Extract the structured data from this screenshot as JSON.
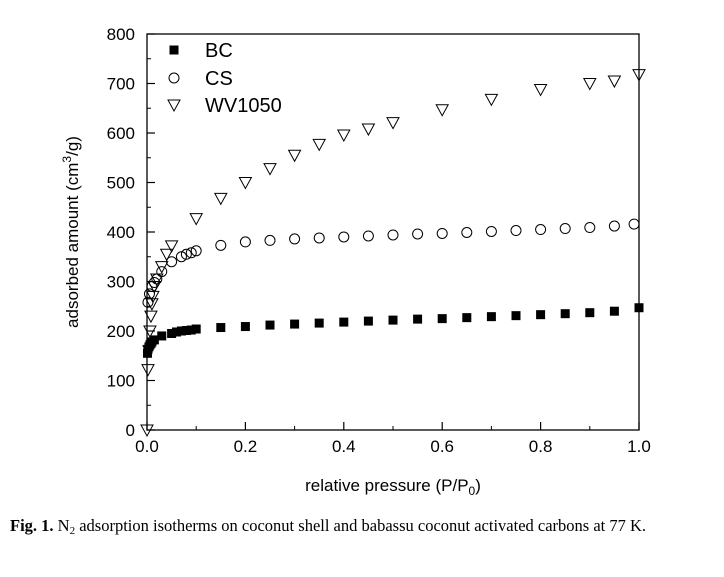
{
  "chart_data": {
    "type": "scatter",
    "xlabel_main": "relative pressure (P/P",
    "xlabel_sub": "0",
    "xlabel_end": ")",
    "ylabel_main": "adsorbed amount (cm",
    "ylabel_sup": "3",
    "ylabel_end": "/g)",
    "xlim": [
      0.0,
      1.0
    ],
    "ylim": [
      0,
      800
    ],
    "xticks": [
      0.0,
      0.2,
      0.4,
      0.6,
      0.8,
      1.0
    ],
    "xtick_labels": [
      "0.0",
      "0.2",
      "0.4",
      "0.6",
      "0.8",
      "1.0"
    ],
    "yticks": [
      0,
      100,
      200,
      300,
      400,
      500,
      600,
      700,
      800
    ],
    "ytick_labels": [
      "0",
      "100",
      "200",
      "300",
      "400",
      "500",
      "600",
      "700",
      "800"
    ],
    "grid": false,
    "legend_position": "top-left",
    "series": [
      {
        "name": "BC",
        "marker": "filled-square",
        "x": [
          0.001,
          0.002,
          0.004,
          0.006,
          0.008,
          0.01,
          0.015,
          0.03,
          0.05,
          0.06,
          0.07,
          0.08,
          0.09,
          0.1,
          0.15,
          0.2,
          0.25,
          0.3,
          0.35,
          0.4,
          0.45,
          0.5,
          0.55,
          0.6,
          0.65,
          0.7,
          0.75,
          0.8,
          0.85,
          0.9,
          0.95,
          1.0
        ],
        "y": [
          155,
          163,
          168,
          172,
          175,
          178,
          182,
          190,
          195,
          198,
          200,
          201,
          202,
          204,
          207,
          209,
          212,
          214,
          216,
          218,
          220,
          222,
          224,
          225,
          227,
          229,
          231,
          233,
          235,
          237,
          240,
          247
        ]
      },
      {
        "name": "CS",
        "marker": "open-circle",
        "x": [
          0.002,
          0.005,
          0.01,
          0.015,
          0.02,
          0.03,
          0.05,
          0.07,
          0.08,
          0.09,
          0.1,
          0.15,
          0.2,
          0.25,
          0.3,
          0.35,
          0.4,
          0.45,
          0.5,
          0.55,
          0.6,
          0.65,
          0.7,
          0.75,
          0.8,
          0.85,
          0.9,
          0.95,
          0.99
        ],
        "y": [
          258,
          275,
          290,
          298,
          305,
          320,
          340,
          350,
          355,
          358,
          362,
          373,
          380,
          383,
          386,
          388,
          390,
          392,
          394,
          396,
          397,
          399,
          401,
          403,
          405,
          407,
          409,
          412,
          416
        ]
      },
      {
        "name": "WV1050",
        "marker": "open-triangle-down",
        "x": [
          0.0,
          0.002,
          0.004,
          0.006,
          0.008,
          0.01,
          0.012,
          0.015,
          0.02,
          0.03,
          0.04,
          0.05,
          0.1,
          0.15,
          0.2,
          0.25,
          0.3,
          0.35,
          0.4,
          0.45,
          0.5,
          0.6,
          0.7,
          0.8,
          0.9,
          0.95,
          1.0
        ],
        "y": [
          0,
          122,
          160,
          200,
          230,
          255,
          270,
          290,
          305,
          330,
          355,
          372,
          427,
          468,
          500,
          528,
          555,
          577,
          596,
          608,
          621,
          647,
          668,
          688,
          700,
          705,
          718
        ]
      }
    ]
  },
  "caption": {
    "label": "Fig. 1.",
    "text_1": " N",
    "text_sub": "2",
    "text_2": " adsorption isotherms on coconut shell and babassu coconut activated carbons at 77 K."
  }
}
